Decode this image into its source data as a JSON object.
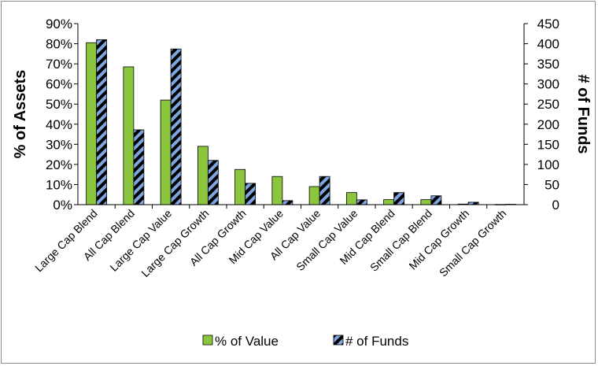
{
  "chart_data": {
    "type": "bar",
    "categories": [
      "Large Cap Blend",
      "All Cap Blend",
      "Large Cap Value",
      "Large Cap Growth",
      "All Cap Growth",
      "Mid Cap Value",
      "All Cap Value",
      "Small Cap Value",
      "Mid Cap Blend",
      "Small Cap Blend",
      "Mid Cap Growth",
      "Small Cap Growth"
    ],
    "series": [
      {
        "name": "% of Value",
        "axis": "left",
        "color": "#8cc63f",
        "values": [
          80.5,
          68.5,
          52,
          29,
          17.5,
          14,
          9,
          6,
          2.5,
          2.5,
          0.3,
          0.1
        ]
      },
      {
        "name": "# of Funds",
        "axis": "right",
        "color": "#7ea6e0",
        "pattern": "diagonal-stripes-black",
        "values": [
          410,
          186,
          387,
          110,
          53,
          10,
          70,
          12,
          30,
          22,
          6,
          1
        ]
      }
    ],
    "ylabel": "% of Assets",
    "y2label": "# of Funds",
    "ylim": [
      0,
      90
    ],
    "y2lim": [
      0,
      450
    ],
    "yticks": [
      "0%",
      "10%",
      "20%",
      "30%",
      "40%",
      "50%",
      "60%",
      "70%",
      "80%",
      "90%"
    ],
    "y2ticks": [
      "0",
      "50",
      "100",
      "150",
      "200",
      "250",
      "300",
      "350",
      "400",
      "450"
    ],
    "grid": false,
    "legend": "bottom-center"
  }
}
